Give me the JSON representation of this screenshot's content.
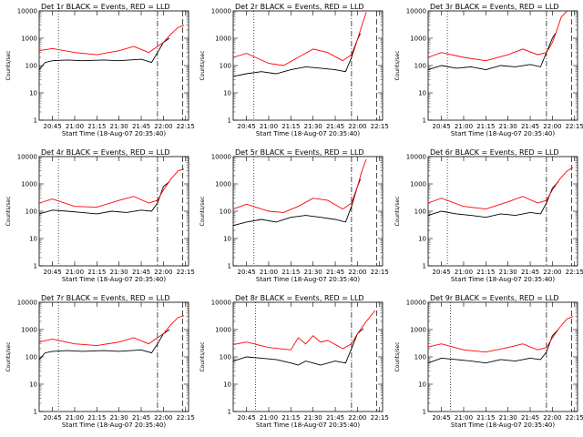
{
  "figure": {
    "ylabel": "Counts/sec",
    "xlabel": "Start Time (18-Aug-07 20:35:40)",
    "x_ticks": [
      "20:45",
      "21:00",
      "21:15",
      "21:30",
      "21:45",
      "22:00",
      "22:15"
    ],
    "y_ticks": [
      "1",
      "10",
      "100",
      "1000",
      "10000"
    ],
    "colors": {
      "events": "#000000",
      "lld": "#ff0000"
    }
  },
  "chart_data": [
    {
      "type": "line",
      "title": "Det 1r BLACK = Events, RED = LLD",
      "ylim": [
        1,
        10000
      ],
      "y_scale": "log",
      "series": [
        {
          "legend": "Events",
          "x": [
            "20:36",
            "20:40",
            "20:45",
            "20:55",
            "21:05",
            "21:20",
            "21:30",
            "21:45",
            "21:52",
            "21:56",
            "22:00",
            "22:04"
          ],
          "values": [
            70,
            130,
            150,
            160,
            150,
            160,
            150,
            170,
            130,
            300,
            700,
            1000
          ]
        },
        {
          "legend": "LLD",
          "x": [
            "20:36",
            "20:45",
            "21:00",
            "21:15",
            "21:30",
            "21:40",
            "21:50",
            "21:56",
            "22:00",
            "22:05",
            "22:10",
            "22:14"
          ],
          "values": [
            350,
            420,
            300,
            250,
            350,
            500,
            300,
            500,
            700,
            1400,
            2500,
            3000
          ]
        }
      ],
      "vlines": [
        "20:49",
        "21:56",
        "22:13"
      ]
    },
    {
      "type": "line",
      "title": "Det 2r BLACK = Events, RED = LLD",
      "ylim": [
        1,
        10000
      ],
      "y_scale": "log",
      "series": [
        {
          "legend": "Events",
          "x": [
            "20:36",
            "20:45",
            "20:55",
            "21:05",
            "21:15",
            "21:25",
            "21:35",
            "21:45",
            "21:52",
            "21:56",
            "22:00",
            "22:02"
          ],
          "values": [
            40,
            50,
            60,
            50,
            70,
            90,
            80,
            70,
            60,
            200,
            900,
            1500
          ]
        },
        {
          "legend": "LLD",
          "x": [
            "20:36",
            "20:45",
            "21:00",
            "21:10",
            "21:20",
            "21:30",
            "21:40",
            "21:50",
            "21:56",
            "22:00",
            "22:03",
            "22:06"
          ],
          "values": [
            200,
            280,
            120,
            100,
            200,
            400,
            300,
            150,
            250,
            900,
            3000,
            9000
          ]
        }
      ],
      "vlines": [
        "20:50",
        "21:56",
        "22:13"
      ]
    },
    {
      "type": "line",
      "title": "Det 3r BLACK = Events, RED = LLD",
      "ylim": [
        1,
        10000
      ],
      "y_scale": "log",
      "series": [
        {
          "legend": "Events",
          "x": [
            "20:36",
            "20:45",
            "20:55",
            "21:05",
            "21:15",
            "21:25",
            "21:35",
            "21:45",
            "21:52",
            "21:56",
            "22:00",
            "22:02"
          ],
          "values": [
            70,
            100,
            80,
            90,
            70,
            100,
            90,
            110,
            90,
            300,
            1000,
            1500
          ]
        },
        {
          "legend": "LLD",
          "x": [
            "20:36",
            "20:45",
            "21:00",
            "21:15",
            "21:30",
            "21:40",
            "21:50",
            "21:56",
            "22:00",
            "22:03",
            "22:06",
            "22:10"
          ],
          "values": [
            200,
            300,
            200,
            150,
            250,
            400,
            250,
            300,
            700,
            2000,
            6000,
            10000
          ]
        }
      ],
      "vlines": [
        "20:49",
        "21:56",
        "22:13"
      ]
    },
    {
      "type": "line",
      "title": "Det 4r BLACK = Events, RED = LLD",
      "ylim": [
        1,
        10000
      ],
      "y_scale": "log",
      "series": [
        {
          "legend": "Events",
          "x": [
            "20:36",
            "20:45",
            "20:55",
            "21:05",
            "21:15",
            "21:25",
            "21:35",
            "21:45",
            "21:52",
            "21:56",
            "22:00",
            "22:04"
          ],
          "values": [
            80,
            110,
            100,
            90,
            80,
            100,
            90,
            110,
            100,
            200,
            800,
            1200
          ]
        },
        {
          "legend": "LLD",
          "x": [
            "20:36",
            "20:45",
            "21:00",
            "21:15",
            "21:30",
            "21:40",
            "21:50",
            "21:56",
            "22:00",
            "22:05",
            "22:10",
            "22:14"
          ],
          "values": [
            200,
            280,
            150,
            140,
            250,
            350,
            200,
            250,
            600,
            1500,
            3000,
            3500
          ]
        }
      ],
      "vlines": [
        "20:49",
        "21:56",
        "22:13"
      ]
    },
    {
      "type": "line",
      "title": "Det 5r BLACK = Events, RED = LLD",
      "ylim": [
        1,
        10000
      ],
      "y_scale": "log",
      "series": [
        {
          "legend": "Events",
          "x": [
            "20:36",
            "20:45",
            "20:55",
            "21:05",
            "21:15",
            "21:25",
            "21:35",
            "21:45",
            "21:52",
            "21:56",
            "22:00",
            "22:02"
          ],
          "values": [
            30,
            40,
            50,
            40,
            60,
            70,
            60,
            50,
            40,
            150,
            800,
            1500
          ]
        },
        {
          "legend": "LLD",
          "x": [
            "20:36",
            "20:45",
            "21:00",
            "21:10",
            "21:20",
            "21:30",
            "21:40",
            "21:50",
            "21:56",
            "22:00",
            "22:03",
            "22:06"
          ],
          "values": [
            120,
            180,
            100,
            90,
            150,
            300,
            250,
            120,
            200,
            800,
            3000,
            8000
          ]
        }
      ],
      "vlines": [
        "20:50",
        "21:56",
        "22:13"
      ]
    },
    {
      "type": "line",
      "title": "Det 6r BLACK = Events, RED = LLD",
      "ylim": [
        1,
        10000
      ],
      "y_scale": "log",
      "series": [
        {
          "legend": "Events",
          "x": [
            "20:36",
            "20:45",
            "20:55",
            "21:05",
            "21:15",
            "21:25",
            "21:35",
            "21:45",
            "21:52",
            "21:56",
            "22:00",
            "22:04"
          ],
          "values": [
            70,
            100,
            80,
            70,
            60,
            80,
            70,
            90,
            80,
            200,
            700,
            1200
          ]
        },
        {
          "legend": "LLD",
          "x": [
            "20:36",
            "20:45",
            "21:00",
            "21:15",
            "21:30",
            "21:40",
            "21:50",
            "21:56",
            "22:00",
            "22:05",
            "22:10",
            "22:14"
          ],
          "values": [
            200,
            300,
            150,
            120,
            220,
            350,
            200,
            250,
            600,
            1500,
            3000,
            4000
          ]
        }
      ],
      "vlines": [
        "20:49",
        "21:56",
        "22:13"
      ]
    },
    {
      "type": "line",
      "title": "Det 7r BLACK = Events, RED = LLD",
      "ylim": [
        1,
        10000
      ],
      "y_scale": "log",
      "series": [
        {
          "legend": "Events",
          "x": [
            "20:36",
            "20:40",
            "20:45",
            "20:55",
            "21:05",
            "21:20",
            "21:30",
            "21:45",
            "21:52",
            "21:56",
            "22:00",
            "22:04"
          ],
          "values": [
            80,
            140,
            160,
            170,
            160,
            170,
            160,
            180,
            140,
            300,
            700,
            1000
          ]
        },
        {
          "legend": "LLD",
          "x": [
            "20:36",
            "20:45",
            "21:00",
            "21:15",
            "21:30",
            "21:40",
            "21:50",
            "21:56",
            "22:00",
            "22:05",
            "22:10",
            "22:14"
          ],
          "values": [
            350,
            450,
            300,
            260,
            350,
            500,
            300,
            500,
            700,
            1500,
            2800,
            3200
          ]
        }
      ],
      "vlines": [
        "20:49",
        "21:56",
        "22:13"
      ]
    },
    {
      "type": "line",
      "title": "Det 8r BLACK = Events, RED = LLD",
      "ylim": [
        1,
        10000
      ],
      "y_scale": "log",
      "series": [
        {
          "legend": "Events",
          "x": [
            "20:36",
            "20:45",
            "20:55",
            "21:05",
            "21:15",
            "21:20",
            "21:25",
            "21:30",
            "21:35",
            "21:45",
            "21:52",
            "21:56",
            "22:00",
            "22:04"
          ],
          "values": [
            70,
            100,
            90,
            80,
            60,
            50,
            70,
            60,
            50,
            70,
            60,
            200,
            700,
            1100
          ]
        },
        {
          "legend": "LLD",
          "x": [
            "20:36",
            "20:45",
            "21:00",
            "21:15",
            "21:20",
            "21:25",
            "21:30",
            "21:35",
            "21:40",
            "21:50",
            "21:56",
            "22:00",
            "22:06",
            "22:12"
          ],
          "values": [
            280,
            350,
            220,
            180,
            500,
            300,
            600,
            350,
            400,
            200,
            300,
            700,
            2000,
            5000
          ]
        }
      ],
      "vlines": [
        "20:51",
        "21:56",
        "22:13"
      ]
    },
    {
      "type": "line",
      "title": "Det 9r BLACK = Events, RED = LLD",
      "ylim": [
        1,
        10000
      ],
      "y_scale": "log",
      "series": [
        {
          "legend": "Events",
          "x": [
            "20:36",
            "20:45",
            "20:55",
            "21:05",
            "21:15",
            "21:25",
            "21:35",
            "21:45",
            "21:52",
            "21:56",
            "22:00",
            "22:04"
          ],
          "values": [
            60,
            90,
            80,
            70,
            60,
            80,
            70,
            90,
            80,
            150,
            600,
            1000
          ]
        },
        {
          "legend": "LLD",
          "x": [
            "20:36",
            "20:45",
            "21:00",
            "21:15",
            "21:30",
            "21:40",
            "21:50",
            "21:56",
            "22:00",
            "22:05",
            "22:10",
            "22:14"
          ],
          "values": [
            230,
            300,
            180,
            150,
            220,
            300,
            180,
            220,
            500,
            1200,
            2500,
            3000
          ]
        }
      ],
      "vlines": [
        "20:51",
        "21:56",
        "22:13"
      ]
    }
  ]
}
